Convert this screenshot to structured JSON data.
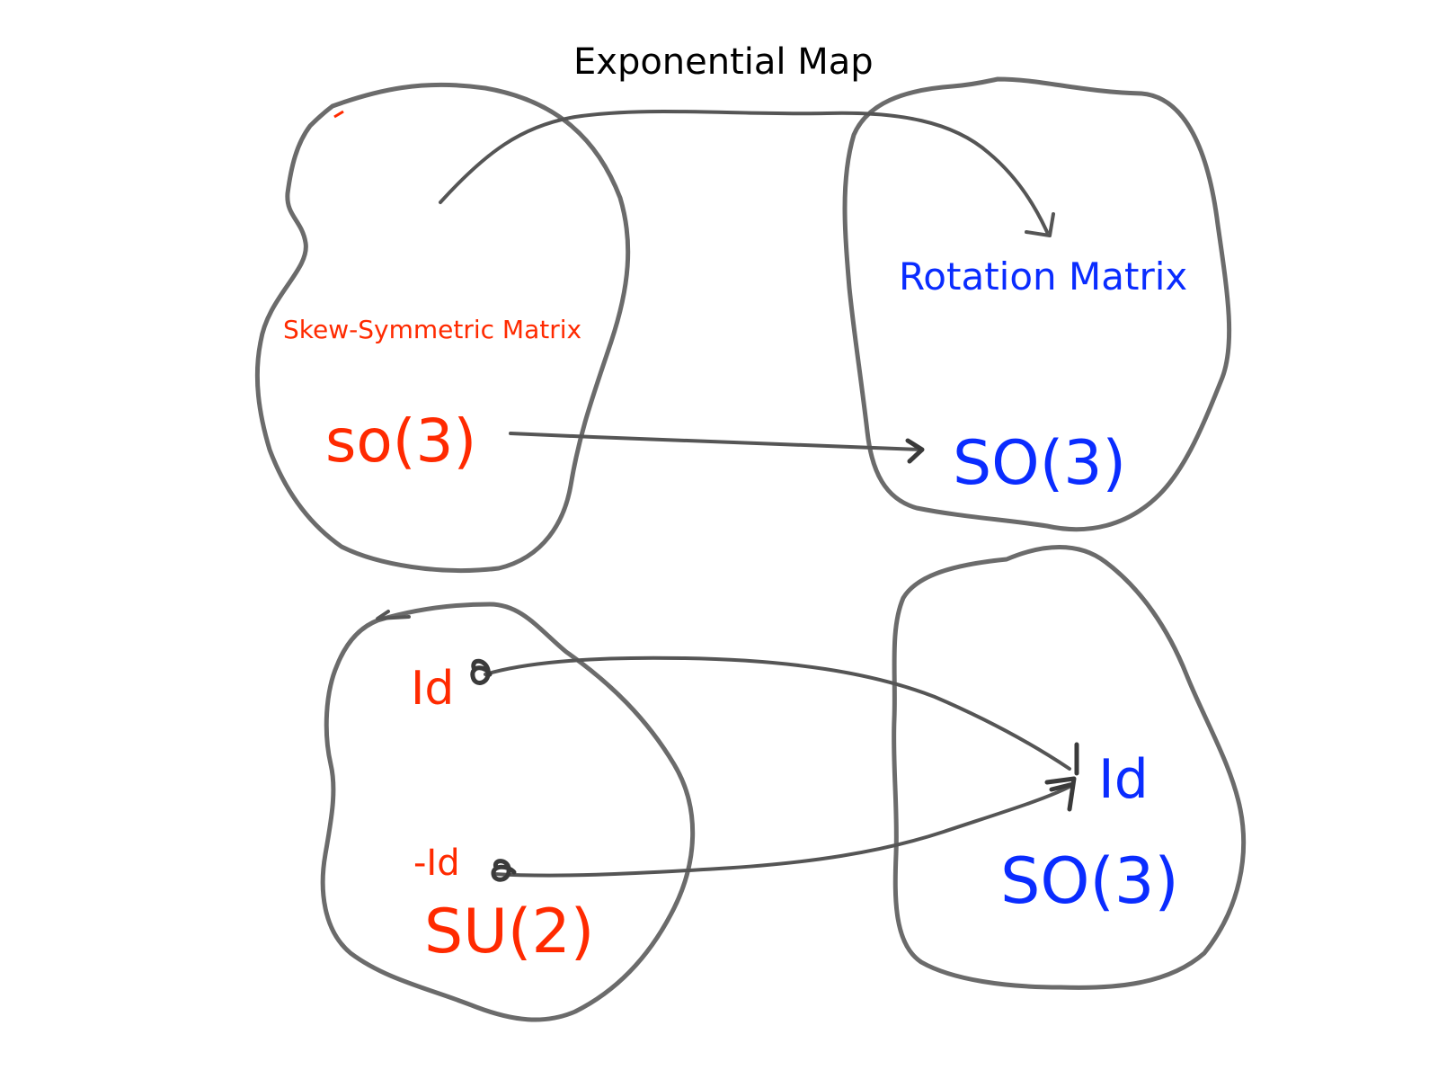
{
  "title": "Exponential Map",
  "colors": {
    "red_labels": "#ff2a00",
    "blue_labels": "#0a2cff",
    "strokes": "#6b6b6b"
  },
  "top_left": {
    "caption": "Skew-Symmetric Matrix",
    "name": "so(3)"
  },
  "top_right": {
    "caption": "Rotation Matrix",
    "name": "SO(3)"
  },
  "bottom_left": {
    "identity": "Id",
    "neg_identity": "-Id",
    "name": "SU(2)"
  },
  "bottom_right": {
    "identity": "Id",
    "name": "SO(3)"
  }
}
